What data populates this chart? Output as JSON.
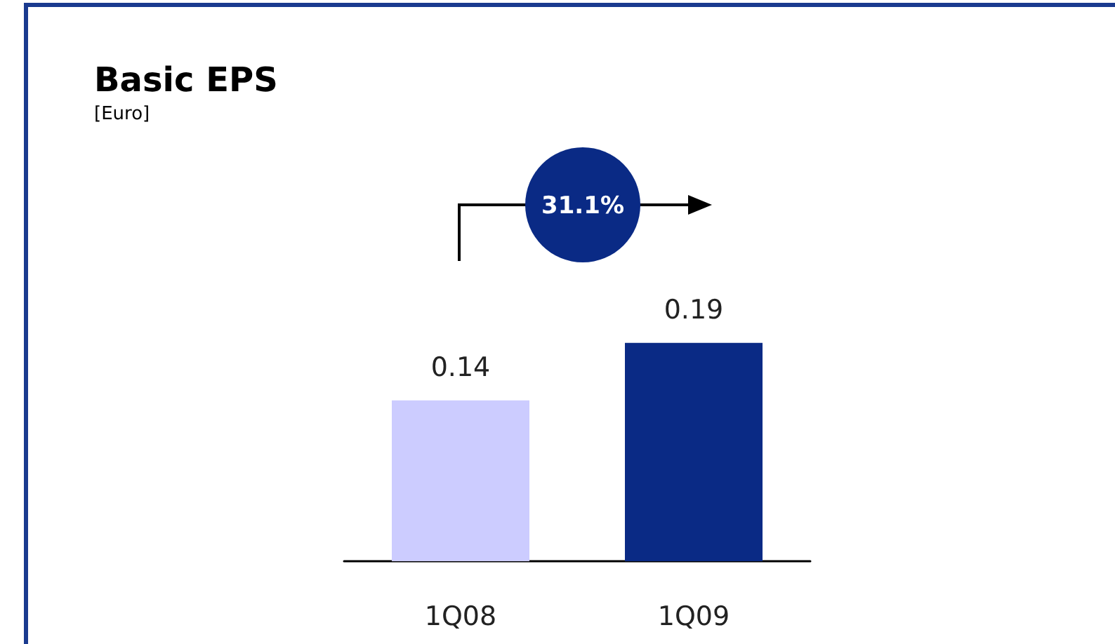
{
  "chart_data": {
    "type": "bar",
    "title": "Basic EPS",
    "subtitle": "[Euro]",
    "categories": [
      "1Q08",
      "1Q09"
    ],
    "values": [
      0.14,
      0.19
    ],
    "colors": [
      "#ccccff",
      "#0a2a85"
    ],
    "data_labels": true,
    "annotations": [
      "31.1%"
    ]
  }
}
